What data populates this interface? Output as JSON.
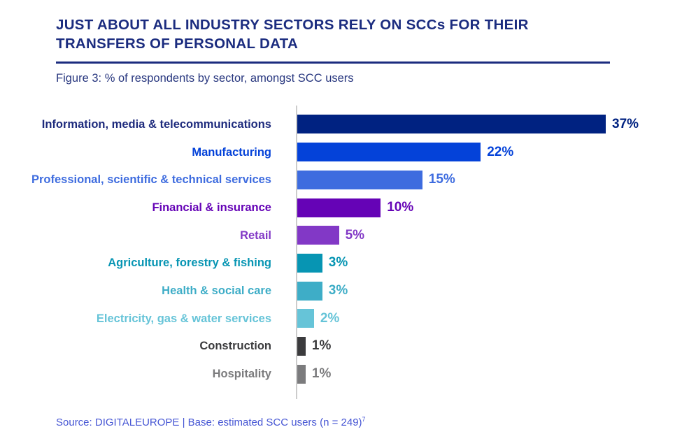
{
  "header": {
    "title": "JUST ABOUT ALL INDUSTRY SECTORS RELY ON SCCs FOR THEIR TRANSFERS OF PERSONAL DATA",
    "caption": "Figure 3: % of respondents by sector, amongst SCC users"
  },
  "footer": {
    "source": "Source: DIGITALEUROPE | Base: estimated SCC users (n = 249)",
    "footnote_marker": "7"
  },
  "colors": {
    "title": "#1b2c7f",
    "divider": "#1b2c7f",
    "caption": "#28377f",
    "axis": "#cccccc",
    "source": "#4656d4"
  },
  "chart_data": {
    "type": "bar",
    "orientation": "horizontal",
    "title": "JUST ABOUT ALL INDUSTRY SECTORS RELY ON SCCs FOR THEIR TRANSFERS OF PERSONAL DATA",
    "subtitle": "Figure 3: % of respondents by sector, amongst SCC users",
    "unit": "%",
    "xlim": [
      0,
      40
    ],
    "grid": false,
    "legend": false,
    "categories": [
      "Information, media & telecommunications",
      "Manufacturing",
      "Professional, scientific & technical services",
      "Financial & insurance",
      "Retail",
      "Agriculture, forestry & fishing",
      "Health & social care",
      "Electricity, gas & water services",
      "Construction",
      "Hospitality"
    ],
    "values": [
      37,
      22,
      15,
      10,
      5,
      3,
      3,
      2,
      1,
      1
    ],
    "value_labels": [
      "37%",
      "22%",
      "15%",
      "10%",
      "5%",
      "3%",
      "3%",
      "2%",
      "1%",
      "1%"
    ],
    "bar_colors": [
      "#002281",
      "#0442d9",
      "#3e6cdf",
      "#6503b6",
      "#8238c6",
      "#0795b3",
      "#3eadc7",
      "#66c4d8",
      "#3b3b3d",
      "#7b7b7d"
    ],
    "label_colors": [
      "#1e2b7d",
      "#0442d9",
      "#3e6cdf",
      "#6503b6",
      "#8238c6",
      "#0795b3",
      "#3eadc7",
      "#66c4d8",
      "#3b3b3d",
      "#7b7b7d"
    ],
    "source": "Source: DIGITALEUROPE | Base: estimated SCC users (n = 249)"
  }
}
